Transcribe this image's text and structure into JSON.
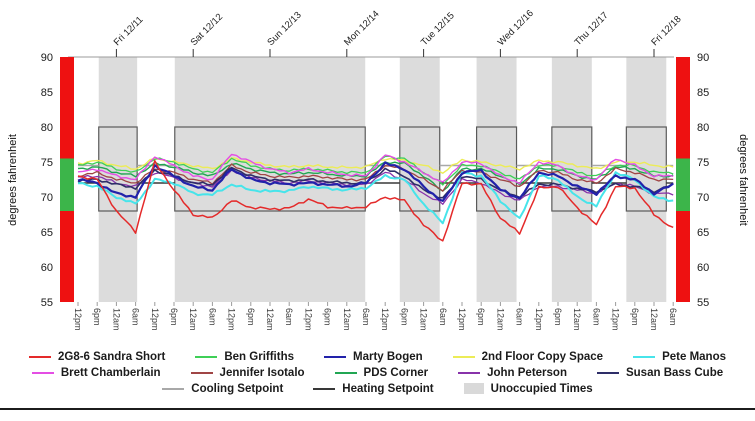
{
  "chart_data": {
    "type": "line",
    "title": "",
    "ylabel_left": "degrees fahrenheit",
    "ylabel_right": "degrees fahrenheit",
    "ylim": [
      55,
      90
    ],
    "yticks": [
      90,
      85,
      80,
      75,
      70,
      65,
      60,
      55
    ],
    "x_tick_labels": [
      "12pm",
      "6pm",
      "12am",
      "6am",
      "12pm",
      "6pm",
      "12am",
      "6am",
      "12pm",
      "6pm",
      "12am",
      "6am",
      "12pm",
      "6pm",
      "12am",
      "6am",
      "12pm",
      "6pm",
      "12am",
      "6am",
      "12pm",
      "6pm",
      "12am",
      "6am",
      "12pm",
      "6pm",
      "12am",
      "6am",
      "12pm",
      "6pm",
      "12am",
      "6am"
    ],
    "sample_interval_days": 0.25,
    "x_range_days": [
      0,
      7.75
    ],
    "day_ticks": [
      {
        "label": "Fri 12/11",
        "t": 0.5
      },
      {
        "label": "Sat 12/12",
        "t": 1.5
      },
      {
        "label": "Sun 12/13",
        "t": 2.5
      },
      {
        "label": "Mon 12/14",
        "t": 3.5
      },
      {
        "label": "Tue 12/15",
        "t": 4.5
      },
      {
        "label": "Wed 12/16",
        "t": 5.5
      },
      {
        "label": "Thu 12/17",
        "t": 6.5
      },
      {
        "label": "Fri 12/18",
        "t": 7.5
      }
    ],
    "unoccupied_bands": [
      [
        0.27,
        0.77
      ],
      [
        1.26,
        3.74
      ],
      [
        4.19,
        4.71
      ],
      [
        5.19,
        5.71
      ],
      [
        6.17,
        6.69
      ],
      [
        7.14,
        7.66
      ]
    ],
    "unoccupied_label": "Unoccupied Times",
    "comfort_zone": {
      "min": 68,
      "max": 75.5,
      "green": "#3cb54a",
      "red": "#ee1111"
    },
    "setpoints": {
      "cooling": {
        "label": "Cooling Setpoint",
        "occupied": 74.5,
        "unoccupied": 80,
        "color": "#a8a8a8"
      },
      "heating": {
        "label": "Heating Setpoint",
        "occupied": 72,
        "unoccupied": 68,
        "color": "#383838"
      }
    },
    "series": [
      {
        "name": "2G8-6 Sandra Short",
        "color": "#e42a2a",
        "width": 1.5,
        "values": [
          73.0,
          72.5,
          68.0,
          65.0,
          75.0,
          71.0,
          67.5,
          67.0,
          69.5,
          68.5,
          68.3,
          68.4,
          69.7,
          68.6,
          68.4,
          68.6,
          70.0,
          69.5,
          66.0,
          63.7,
          72.0,
          71.8,
          67.0,
          64.8,
          71.3,
          71.5,
          68.5,
          66.0,
          71.5,
          71.3,
          67.5,
          65.5
        ]
      },
      {
        "name": "Ben Griffiths",
        "color": "#3fcf57",
        "width": 1.3,
        "values": [
          74.5,
          75.0,
          74.0,
          73.5,
          75.5,
          75.0,
          74.0,
          73.5,
          75.5,
          74.5,
          74.0,
          73.8,
          74.0,
          73.8,
          73.5,
          73.5,
          75.8,
          75.5,
          73.5,
          71.8,
          74.5,
          74.5,
          73.5,
          72.5,
          74.5,
          74.5,
          73.5,
          73.0,
          74.5,
          74.5,
          73.5,
          73.5
        ]
      },
      {
        "name": "Marty Bogen",
        "color": "#2222aa",
        "width": 2.2,
        "values": [
          72.5,
          72.0,
          70.5,
          70.0,
          74.5,
          73.0,
          71.5,
          71.0,
          74.0,
          72.5,
          72.0,
          71.8,
          72.0,
          71.8,
          71.5,
          72.0,
          74.8,
          74.0,
          71.5,
          69.3,
          73.5,
          73.8,
          71.0,
          69.8,
          73.5,
          73.0,
          71.5,
          70.5,
          73.0,
          72.5,
          70.5,
          71.8
        ]
      },
      {
        "name": "2nd Floor Copy Space",
        "color": "#ecec57",
        "width": 1.4,
        "values": [
          74.8,
          75.2,
          74.5,
          74.0,
          75.5,
          75.0,
          74.5,
          74.0,
          75.5,
          75.0,
          74.5,
          74.3,
          74.5,
          74.3,
          74.2,
          74.3,
          75.5,
          75.2,
          74.5,
          73.5,
          75.3,
          75.0,
          74.5,
          74.0,
          75.2,
          75.0,
          74.5,
          74.0,
          75.0,
          75.0,
          74.5,
          74.3
        ]
      },
      {
        "name": "Pete Manos",
        "color": "#47e4ea",
        "width": 2.0,
        "values": [
          72.0,
          71.5,
          70.0,
          69.0,
          72.5,
          72.0,
          70.5,
          70.3,
          71.8,
          71.0,
          70.8,
          70.9,
          71.5,
          71.2,
          71.0,
          71.3,
          73.0,
          72.5,
          69.0,
          66.3,
          73.5,
          73.0,
          69.5,
          66.8,
          73.0,
          72.5,
          70.0,
          68.7,
          73.5,
          72.5,
          70.0,
          69.5
        ]
      },
      {
        "name": "Brett Chamberlain",
        "color": "#e44ee4",
        "width": 1.4,
        "values": [
          73.5,
          74.0,
          73.0,
          72.5,
          75.8,
          74.5,
          73.0,
          72.5,
          76.2,
          75.0,
          74.0,
          73.5,
          74.0,
          73.5,
          73.2,
          73.0,
          76.0,
          75.0,
          73.5,
          72.0,
          75.0,
          74.8,
          73.0,
          72.0,
          75.0,
          74.5,
          73.0,
          72.5,
          75.5,
          74.5,
          73.0,
          73.0
        ]
      },
      {
        "name": "Jennifer Isotalo",
        "color": "#a04545",
        "width": 1.3,
        "values": [
          73.0,
          73.5,
          72.5,
          72.0,
          74.0,
          73.5,
          72.5,
          72.0,
          74.5,
          73.5,
          73.0,
          72.8,
          73.0,
          72.8,
          72.5,
          72.5,
          74.5,
          74.0,
          72.5,
          71.0,
          73.8,
          73.5,
          72.5,
          71.5,
          73.8,
          73.5,
          72.5,
          72.0,
          74.0,
          73.5,
          72.5,
          72.5
        ]
      },
      {
        "name": "PDS Corner",
        "color": "#21a653",
        "width": 1.4,
        "values": [
          74.0,
          74.3,
          73.5,
          73.0,
          74.8,
          74.3,
          73.5,
          73.0,
          74.8,
          74.0,
          73.5,
          73.3,
          73.5,
          73.3,
          73.0,
          73.0,
          75.0,
          74.8,
          73.0,
          70.8,
          74.0,
          74.0,
          73.0,
          71.8,
          74.0,
          74.0,
          73.0,
          72.5,
          74.3,
          74.0,
          73.0,
          73.0
        ]
      },
      {
        "name": "John Peterson",
        "color": "#8833aa",
        "width": 1.3,
        "values": [
          72.8,
          73.0,
          72.0,
          71.5,
          73.5,
          72.8,
          72.0,
          71.5,
          73.8,
          72.8,
          72.3,
          72.0,
          72.3,
          72.0,
          71.8,
          71.8,
          73.5,
          72.5,
          70.5,
          69.0,
          72.5,
          72.0,
          70.5,
          69.5,
          71.5,
          71.5,
          71.0,
          70.5,
          72.0,
          71.5,
          70.5,
          70.5
        ]
      },
      {
        "name": "Susan Bass Cube",
        "color": "#2e2e68",
        "width": 1.6,
        "values": [
          72.3,
          72.5,
          71.8,
          71.3,
          73.8,
          73.0,
          72.0,
          71.8,
          74.2,
          73.0,
          72.5,
          72.3,
          72.5,
          72.2,
          72.0,
          72.0,
          74.0,
          73.0,
          71.0,
          69.8,
          73.0,
          72.5,
          71.0,
          70.0,
          71.8,
          71.8,
          71.2,
          70.8,
          71.8,
          71.5,
          70.8,
          71.8
        ]
      }
    ],
    "band_fill": "#dcdcdc",
    "band_outline": "#5a5a5a",
    "axis_line_color": "#9b9b9b",
    "tick_text_color": "#3c3c3c"
  },
  "legend": {
    "patch_fill": "#d9d9d9"
  }
}
